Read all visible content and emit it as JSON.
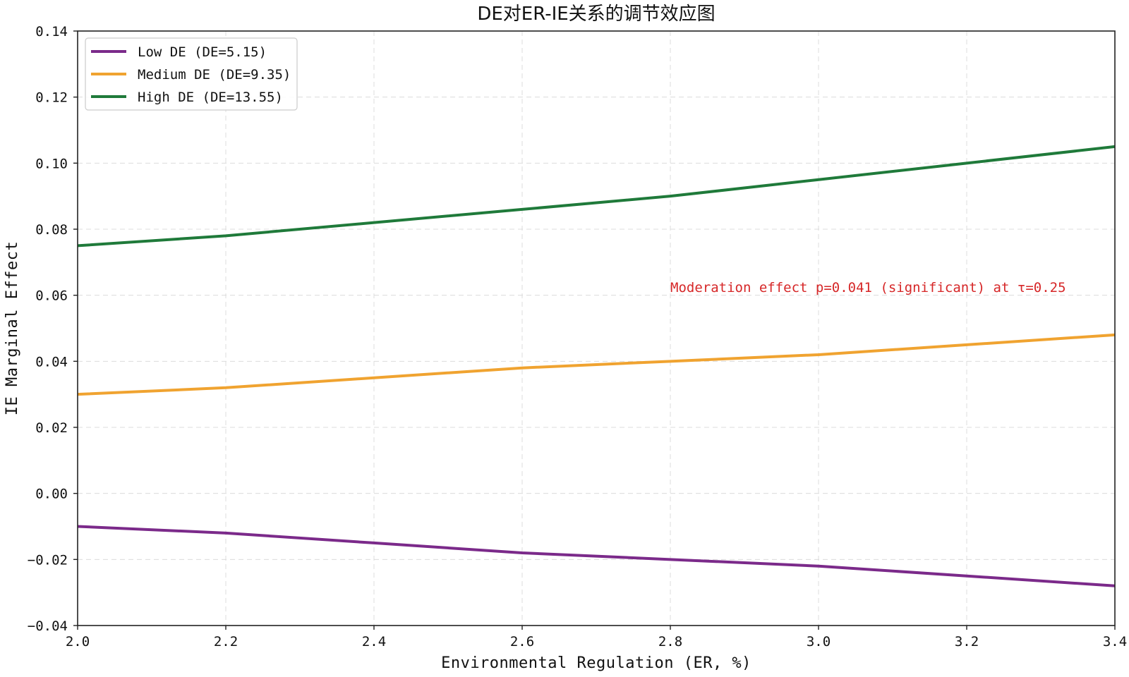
{
  "chart_data": {
    "type": "line",
    "title": "DE对ER-IE关系的调节效应图",
    "xlabel": "Environmental Regulation (ER, %)",
    "ylabel": "IE Marginal Effect",
    "xlim": [
      2.0,
      3.4
    ],
    "ylim": [
      -0.04,
      0.14
    ],
    "xticks": [
      2.0,
      2.2,
      2.4,
      2.6,
      2.8,
      3.0,
      3.2,
      3.4
    ],
    "xtick_labels": [
      "2.0",
      "2.2",
      "2.4",
      "2.6",
      "2.8",
      "3.0",
      "3.2",
      "3.4"
    ],
    "yticks": [
      -0.04,
      -0.02,
      0.0,
      0.02,
      0.04,
      0.06,
      0.08,
      0.1,
      0.12,
      0.14
    ],
    "ytick_labels": [
      "−0.04",
      "−0.02",
      "0.00",
      "0.02",
      "0.04",
      "0.06",
      "0.08",
      "0.10",
      "0.12",
      "0.14"
    ],
    "grid": true,
    "legend_position": "top-left",
    "x": [
      2.0,
      2.2,
      2.4,
      2.6,
      2.8,
      3.0,
      3.2,
      3.4
    ],
    "series": [
      {
        "name": "Low DE (DE=5.15)",
        "color": "#7b2a8a",
        "values": [
          -0.01,
          -0.012,
          -0.015,
          -0.018,
          -0.02,
          -0.022,
          -0.025,
          -0.028
        ]
      },
      {
        "name": "Medium DE (DE=9.35)",
        "color": "#f0a330",
        "values": [
          0.03,
          0.032,
          0.035,
          0.038,
          0.04,
          0.042,
          0.045,
          0.048
        ]
      },
      {
        "name": "High DE (DE=13.55)",
        "color": "#1f7a3a",
        "values": [
          0.075,
          0.078,
          0.082,
          0.086,
          0.09,
          0.095,
          0.1,
          0.105
        ]
      }
    ],
    "annotations": [
      {
        "text": "Moderation effect p=0.041 (significant) at τ=0.25",
        "x": 2.8,
        "y": 0.061,
        "color": "#d62728"
      }
    ]
  }
}
